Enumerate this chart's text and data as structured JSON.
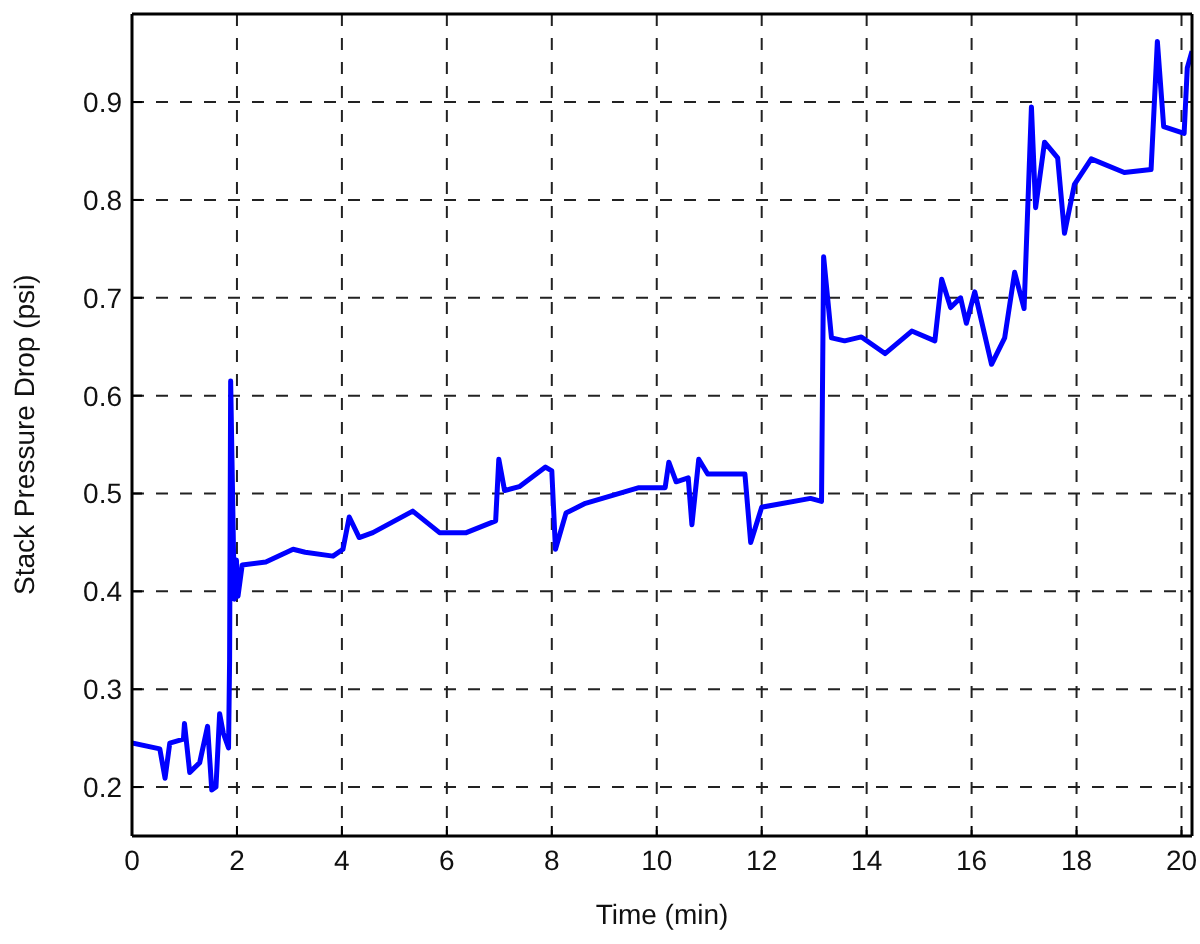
{
  "chart_data": {
    "type": "line",
    "xlabel": "Time (min)",
    "ylabel": "Stack Pressure Drop (psi)",
    "xlim": [
      0,
      20.2
    ],
    "ylim": [
      0.15,
      0.99
    ],
    "xticks": [
      0,
      2,
      4,
      6,
      8,
      10,
      12,
      14,
      16,
      18,
      20
    ],
    "yticks": [
      0.2,
      0.3,
      0.4,
      0.5,
      0.6,
      0.7,
      0.8,
      0.9
    ],
    "grid": true,
    "line_style": "solid",
    "marker": "none",
    "series": [
      {
        "color": "#0000ff",
        "x": [
          0,
          0.53,
          0.63,
          0.72,
          0.98,
          1.0,
          1.1,
          1.29,
          1.44,
          1.52,
          1.6,
          1.67,
          1.74,
          1.84,
          1.86,
          1.88,
          1.95,
          1.99,
          2.02,
          2.1,
          2.55,
          3.07,
          3.3,
          3.83,
          4.02,
          4.14,
          4.33,
          4.59,
          5.35,
          5.86,
          6.37,
          6.93,
          6.99,
          7.1,
          7.38,
          7.88,
          8.0,
          8.07,
          8.27,
          8.64,
          9.66,
          10.16,
          10.23,
          10.37,
          10.6,
          10.67,
          10.8,
          10.97,
          11.68,
          11.79,
          12.0,
          12.93,
          13.14,
          13.18,
          13.33,
          13.58,
          13.9,
          14.35,
          14.86,
          15.3,
          15.43,
          15.6,
          15.79,
          15.9,
          16.06,
          16.38,
          16.63,
          16.82,
          17.0,
          17.14,
          17.22,
          17.39,
          17.64,
          17.77,
          17.96,
          18.28,
          18.91,
          19.42,
          19.54,
          19.66,
          20.05,
          20.11,
          20.2
        ],
        "values": [
          0.245,
          0.239,
          0.209,
          0.245,
          0.249,
          0.265,
          0.215,
          0.225,
          0.262,
          0.197,
          0.2,
          0.275,
          0.255,
          0.24,
          0.33,
          0.615,
          0.392,
          0.432,
          0.395,
          0.427,
          0.43,
          0.443,
          0.44,
          0.436,
          0.443,
          0.476,
          0.455,
          0.46,
          0.482,
          0.46,
          0.46,
          0.472,
          0.535,
          0.503,
          0.507,
          0.527,
          0.523,
          0.443,
          0.48,
          0.49,
          0.506,
          0.506,
          0.532,
          0.512,
          0.516,
          0.468,
          0.535,
          0.52,
          0.52,
          0.45,
          0.486,
          0.495,
          0.492,
          0.742,
          0.659,
          0.656,
          0.66,
          0.643,
          0.666,
          0.656,
          0.719,
          0.69,
          0.7,
          0.674,
          0.706,
          0.632,
          0.659,
          0.726,
          0.689,
          0.895,
          0.792,
          0.859,
          0.843,
          0.766,
          0.816,
          0.842,
          0.828,
          0.831,
          0.962,
          0.875,
          0.868,
          0.935,
          0.952
        ]
      }
    ]
  }
}
